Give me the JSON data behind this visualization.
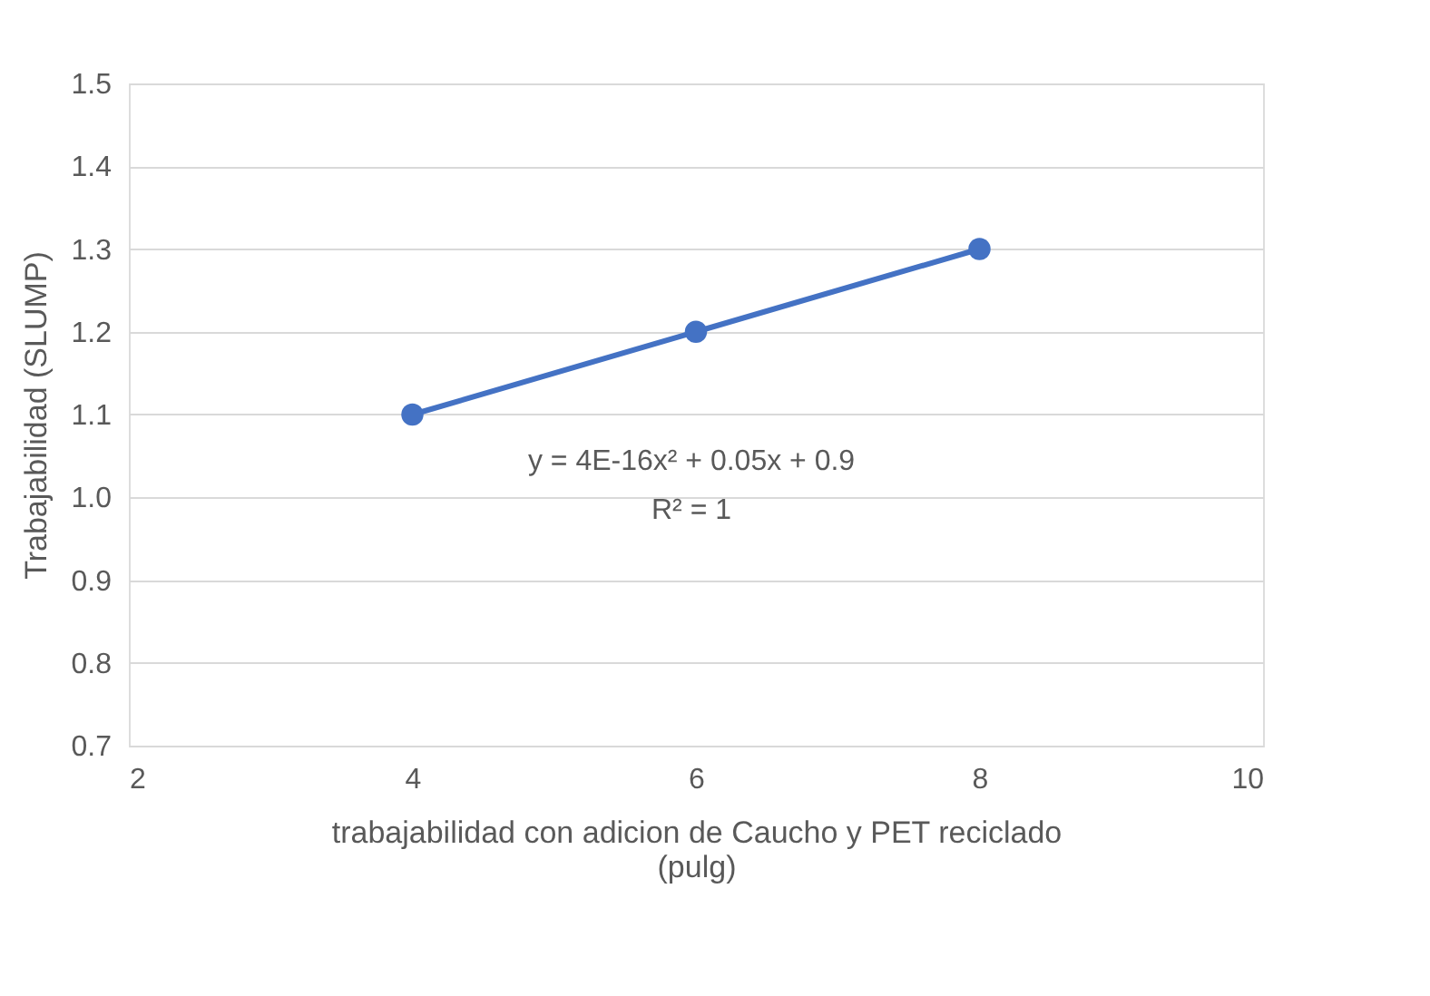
{
  "chart_data": {
    "type": "line",
    "xlabel": "trabajabilidad con adicion de Caucho y PET reciclado (pulg)",
    "ylabel": "Trabajabilidad (SLUMP)",
    "x": [
      4,
      6,
      8
    ],
    "series": [
      {
        "color": "#4472c4",
        "values": [
          1.1,
          1.2,
          1.3
        ]
      }
    ],
    "xlim": [
      2,
      10
    ],
    "xticks": [
      2,
      4,
      6,
      8,
      10
    ],
    "ylim": [
      0.7,
      1.5
    ],
    "yticks": [
      0.7,
      0.8,
      0.9,
      {
        "value": 1,
        "label": "1.0"
      },
      1.1,
      1.2,
      1.3,
      1.4,
      1.5
    ],
    "annotations": [
      "y = 4E-16x² + 0.05x + 0.9",
      "R² = 1"
    ],
    "grid": "y",
    "marker": "circle",
    "line_style": "solid"
  }
}
